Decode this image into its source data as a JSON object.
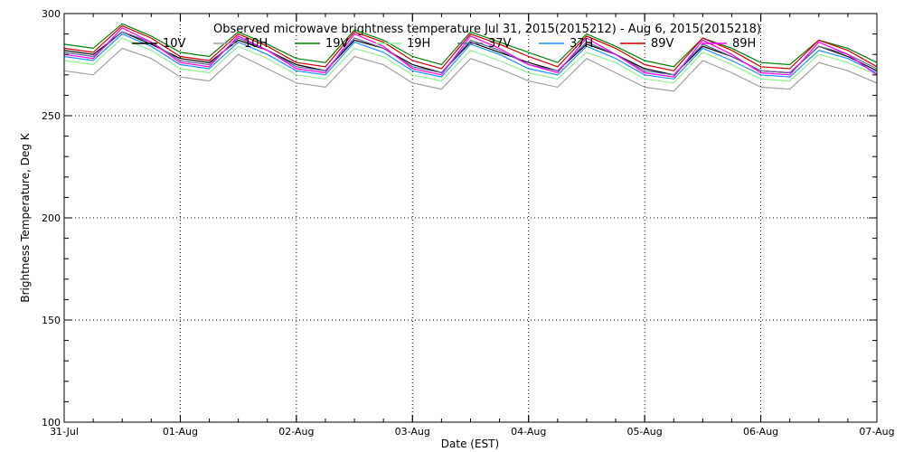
{
  "chart_data": {
    "type": "line",
    "title": "Observed microwave brightness temperature Jul 31, 2015(2015212) - Aug  6, 2015(2015218)",
    "xlabel": "Date (EST)",
    "ylabel": "Brightness Temperature, Deg K",
    "xlim": [
      "31-Jul",
      "07-Aug"
    ],
    "ylim": [
      100,
      300
    ],
    "x_tick_labels": [
      "31-Jul",
      "01-Aug",
      "02-Aug",
      "03-Aug",
      "04-Aug",
      "05-Aug",
      "06-Aug",
      "07-Aug"
    ],
    "y_tick_labels": [
      "100",
      "150",
      "200",
      "250",
      "300"
    ],
    "y_ticks": [
      100,
      150,
      200,
      250,
      300
    ],
    "grid": "dotted",
    "legend_position": "top",
    "x": [
      "31-Jul 00:00",
      "31-Jul 06:00",
      "31-Jul 12:00",
      "31-Jul 18:00",
      "01-Aug 00:00",
      "01-Aug 06:00",
      "01-Aug 12:00",
      "01-Aug 18:00",
      "02-Aug 00:00",
      "02-Aug 06:00",
      "02-Aug 12:00",
      "02-Aug 18:00",
      "03-Aug 00:00",
      "03-Aug 06:00",
      "03-Aug 12:00",
      "03-Aug 18:00",
      "04-Aug 00:00",
      "04-Aug 06:00",
      "04-Aug 12:00",
      "04-Aug 18:00",
      "05-Aug 00:00",
      "05-Aug 06:00",
      "05-Aug 12:00",
      "05-Aug 18:00",
      "06-Aug 00:00",
      "06-Aug 06:00",
      "06-Aug 12:00",
      "06-Aug 18:00",
      "07-Aug 00:00"
    ],
    "series": [
      {
        "name": "10V",
        "color": "#000000",
        "values": [
          282,
          280,
          291,
          285,
          278,
          276,
          287,
          282,
          275,
          272,
          287,
          283,
          275,
          271,
          286,
          281,
          276,
          272,
          285,
          280,
          273,
          270,
          284,
          279,
          272,
          271,
          284,
          279,
          272
        ]
      },
      {
        "name": "10H",
        "color": "#a0a0a0",
        "values": [
          272,
          270,
          283,
          278,
          269,
          267,
          280,
          273,
          266,
          264,
          279,
          275,
          266,
          263,
          278,
          273,
          267,
          264,
          278,
          271,
          264,
          262,
          277,
          271,
          264,
          263,
          276,
          272,
          266
        ]
      },
      {
        "name": "19V",
        "color": "#008000",
        "values": [
          285,
          283,
          295,
          289,
          281,
          279,
          291,
          285,
          278,
          276,
          292,
          287,
          279,
          275,
          291,
          286,
          281,
          276,
          290,
          284,
          277,
          274,
          288,
          283,
          276,
          275,
          287,
          283,
          276
        ]
      },
      {
        "name": "19H",
        "color": "#90ee90",
        "values": [
          277,
          275,
          288,
          282,
          273,
          271,
          284,
          278,
          270,
          268,
          283,
          279,
          270,
          267,
          282,
          277,
          271,
          268,
          281,
          276,
          268,
          266,
          281,
          275,
          268,
          267,
          280,
          276,
          270
        ]
      },
      {
        "name": "37V",
        "color": "#6060a0",
        "values": [
          281,
          279,
          291,
          286,
          277,
          275,
          288,
          282,
          274,
          272,
          288,
          283,
          274,
          271,
          287,
          282,
          275,
          272,
          286,
          280,
          272,
          270,
          285,
          279,
          272,
          271,
          284,
          280,
          273
        ]
      },
      {
        "name": "37H",
        "color": "#1e90ff",
        "values": [
          279,
          277,
          290,
          284,
          275,
          273,
          286,
          280,
          272,
          270,
          286,
          281,
          272,
          269,
          285,
          280,
          273,
          270,
          284,
          278,
          270,
          268,
          283,
          277,
          270,
          269,
          282,
          278,
          271
        ]
      },
      {
        "name": "89V",
        "color": "#d00000",
        "values": [
          283,
          281,
          294,
          288,
          279,
          277,
          290,
          284,
          276,
          274,
          291,
          286,
          277,
          273,
          290,
          285,
          279,
          274,
          289,
          283,
          275,
          272,
          288,
          282,
          274,
          273,
          287,
          282,
          274
        ]
      },
      {
        "name": "89H",
        "color": "#ff00ff",
        "values": [
          280,
          278,
          293,
          286,
          276,
          274,
          289,
          282,
          273,
          271,
          290,
          284,
          273,
          270,
          289,
          283,
          275,
          271,
          288,
          280,
          271,
          269,
          287,
          280,
          271,
          270,
          286,
          280,
          270
        ]
      }
    ]
  }
}
